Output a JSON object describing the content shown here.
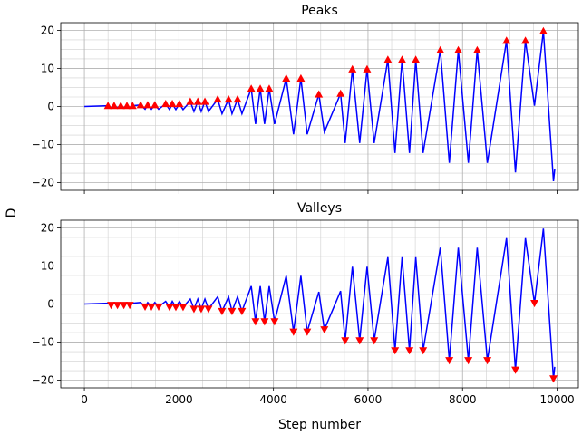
{
  "chart_data": [
    {
      "type": "line",
      "title": "Peaks",
      "ylabel": "D",
      "xlim": [
        -500,
        10450
      ],
      "ylim": [
        -22,
        22
      ],
      "xticks": [
        0,
        2000,
        4000,
        6000,
        8000,
        10000
      ],
      "show_xticklabels": false,
      "yticks": [
        -20,
        -10,
        0,
        10,
        20
      ],
      "xminorticks": [
        -500,
        500,
        1000,
        1500,
        2500,
        3000,
        3500,
        4500,
        5000,
        5500,
        6500,
        7000,
        7500,
        8500,
        9000,
        9500
      ],
      "yminorticks": [
        -17.5,
        -15,
        -12.5,
        -7.5,
        -5,
        -2.5,
        2.5,
        5,
        7.5,
        12.5,
        15,
        17.5
      ],
      "grid": true,
      "series": [
        {
          "color": "#0000ff",
          "marker": "none",
          "x": [
            0,
            500,
            565,
            630,
            700,
            770,
            835,
            900,
            960,
            1020,
            1190,
            1284,
            1340,
            1418,
            1490,
            1571,
            1720,
            1801,
            1860,
            1935,
            2010,
            2088,
            2240,
            2318,
            2400,
            2471,
            2550,
            2625,
            2820,
            2912,
            3050,
            3123,
            3240,
            3333,
            3530,
            3621,
            3720,
            3812,
            3910,
            4023,
            4270,
            4425,
            4580,
            4713,
            4960,
            5077,
            5420,
            5517,
            5670,
            5824,
            5980,
            6130,
            6420,
            6571,
            6720,
            6877,
            7010,
            7165,
            7530,
            7720,
            7910,
            8123,
            8310,
            8525,
            8930,
            9119,
            9330,
            9521,
            9710,
            9923,
            9950
          ],
          "values": [
            0,
            0.2,
            -0.3,
            0.2,
            -0.3,
            0.2,
            -0.3,
            0.2,
            -0.3,
            0.2,
            0.4,
            -0.7,
            0.4,
            -0.7,
            0.4,
            -0.7,
            0.7,
            -0.8,
            0.7,
            -0.8,
            0.7,
            -0.8,
            1.3,
            -1.3,
            1.3,
            -1.3,
            1.3,
            -1.3,
            1.9,
            -1.9,
            1.9,
            -1.9,
            1.9,
            -1.9,
            4.7,
            -4.6,
            4.7,
            -4.6,
            4.7,
            -4.6,
            7.4,
            -7.3,
            7.4,
            -7.3,
            3.2,
            -6.7,
            3.4,
            -9.6,
            9.8,
            -9.6,
            9.8,
            -9.6,
            12.3,
            -12.2,
            12.3,
            -12.2,
            12.3,
            -12.2,
            14.8,
            -14.8,
            14.8,
            -14.8,
            14.8,
            -14.8,
            17.3,
            -17.3,
            17.3,
            0.2,
            19.8,
            -19.6,
            -16.5
          ]
        },
        {
          "color": "#ff0000",
          "marker": "triangle-up",
          "x": [
            500,
            630,
            770,
            900,
            1020,
            1190,
            1340,
            1490,
            1720,
            1860,
            2010,
            2240,
            2400,
            2550,
            2820,
            3050,
            3240,
            3530,
            3720,
            3910,
            4270,
            4580,
            4960,
            5420,
            5670,
            5980,
            6420,
            6720,
            7010,
            7530,
            7910,
            8310,
            8930,
            9330,
            9710
          ],
          "values": [
            0.2,
            0.2,
            0.2,
            0.2,
            0.2,
            0.4,
            0.4,
            0.4,
            0.7,
            0.7,
            0.7,
            1.3,
            1.3,
            1.3,
            1.9,
            1.9,
            1.9,
            4.7,
            4.7,
            4.7,
            7.4,
            7.4,
            3.2,
            3.4,
            9.8,
            9.8,
            12.3,
            12.3,
            12.3,
            14.8,
            14.8,
            14.8,
            17.3,
            17.3,
            19.8
          ]
        }
      ]
    },
    {
      "type": "line",
      "title": "Valleys",
      "xlabel": "Step number",
      "xlim": [
        -500,
        10450
      ],
      "ylim": [
        -22,
        22
      ],
      "xticks": [
        0,
        2000,
        4000,
        6000,
        8000,
        10000
      ],
      "show_xticklabels": true,
      "yticks": [
        -20,
        -10,
        0,
        10,
        20
      ],
      "xminorticks": [
        -500,
        500,
        1000,
        1500,
        2500,
        3000,
        3500,
        4500,
        5000,
        5500,
        6500,
        7000,
        7500,
        8500,
        9000,
        9500
      ],
      "yminorticks": [
        -17.5,
        -15,
        -12.5,
        -7.5,
        -5,
        -2.5,
        2.5,
        5,
        7.5,
        12.5,
        15,
        17.5
      ],
      "grid": true,
      "series": [
        {
          "color": "#0000ff",
          "marker": "none",
          "x": [
            0,
            500,
            565,
            630,
            700,
            770,
            835,
            900,
            960,
            1020,
            1190,
            1284,
            1340,
            1418,
            1490,
            1571,
            1720,
            1801,
            1860,
            1935,
            2010,
            2088,
            2240,
            2318,
            2400,
            2471,
            2550,
            2625,
            2820,
            2912,
            3050,
            3123,
            3240,
            3333,
            3530,
            3621,
            3720,
            3812,
            3910,
            4023,
            4270,
            4425,
            4580,
            4713,
            4960,
            5077,
            5420,
            5517,
            5670,
            5824,
            5980,
            6130,
            6420,
            6571,
            6720,
            6877,
            7010,
            7165,
            7530,
            7720,
            7910,
            8123,
            8310,
            8525,
            8930,
            9119,
            9330,
            9521,
            9710,
            9923,
            9950
          ],
          "values": [
            0,
            0.2,
            -0.3,
            0.2,
            -0.3,
            0.2,
            -0.3,
            0.2,
            -0.3,
            0.2,
            0.4,
            -0.7,
            0.4,
            -0.7,
            0.4,
            -0.7,
            0.7,
            -0.8,
            0.7,
            -0.8,
            0.7,
            -0.8,
            1.3,
            -1.3,
            1.3,
            -1.3,
            1.3,
            -1.3,
            1.9,
            -1.9,
            1.9,
            -1.9,
            1.9,
            -1.9,
            4.7,
            -4.6,
            4.7,
            -4.6,
            4.7,
            -4.6,
            7.4,
            -7.3,
            7.4,
            -7.3,
            3.2,
            -6.7,
            3.4,
            -9.6,
            9.8,
            -9.6,
            9.8,
            -9.6,
            12.3,
            -12.2,
            12.3,
            -12.2,
            12.3,
            -12.2,
            14.8,
            -14.8,
            14.8,
            -14.8,
            14.8,
            -14.8,
            17.3,
            -17.3,
            17.3,
            0.2,
            19.8,
            -19.6,
            -16.5
          ]
        },
        {
          "color": "#ff0000",
          "marker": "triangle-down",
          "x": [
            565,
            700,
            835,
            960,
            1284,
            1418,
            1571,
            1801,
            1935,
            2088,
            2318,
            2471,
            2625,
            2912,
            3123,
            3333,
            3621,
            3812,
            4023,
            4425,
            4713,
            5077,
            5517,
            5824,
            6130,
            6571,
            6877,
            7165,
            7720,
            8123,
            8525,
            9119,
            9521,
            9923
          ],
          "values": [
            -0.3,
            -0.3,
            -0.3,
            -0.3,
            -0.7,
            -0.7,
            -0.7,
            -0.8,
            -0.8,
            -0.8,
            -1.3,
            -1.3,
            -1.3,
            -1.9,
            -1.9,
            -1.9,
            -4.6,
            -4.6,
            -4.6,
            -7.3,
            -7.3,
            -6.7,
            -9.6,
            -9.6,
            -9.6,
            -12.2,
            -12.2,
            -12.2,
            -14.8,
            -14.8,
            -14.8,
            -17.3,
            0.2,
            -19.6
          ]
        }
      ]
    }
  ]
}
